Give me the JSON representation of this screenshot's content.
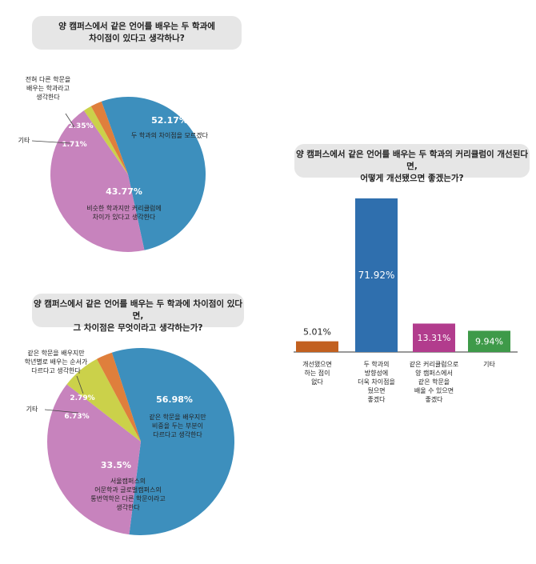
{
  "colors": {
    "blue": "#3d8fbd",
    "pink": "#c783bd",
    "orange": "#df7f3c",
    "yellow": "#cbd14a",
    "bar_blue": "#2f6fae",
    "bar_orange": "#c2601f",
    "bar_magenta": "#b23c8d",
    "bar_green": "#3e9a49"
  },
  "chart_data": [
    {
      "type": "pie",
      "title_lines": [
        "양 캠퍼스에서 같은 언어를 배우는 두 학과에",
        "차이점이 있다고 생각하나?"
      ],
      "slices": [
        {
          "value": 52.17,
          "pct": "52.17%",
          "label": [
            "두 학과의 차이점을 모르겠다"
          ],
          "color": "#3d8fbd"
        },
        {
          "value": 43.77,
          "pct": "43.77%",
          "label": [
            "비슷한 학과지만 커리큘럼에",
            "차이가 있다고 생각한다"
          ],
          "color": "#c783bd"
        },
        {
          "value": 1.71,
          "pct": "1.71%",
          "label": [
            "기타"
          ],
          "color": "#cbd14a"
        },
        {
          "value": 2.35,
          "pct": "2.35%",
          "label": [
            "전혀 다른 학문을",
            "배우는 학과라고",
            "생각한다"
          ],
          "color": "#df7f3c"
        }
      ]
    },
    {
      "type": "pie",
      "title_lines": [
        "양 캠퍼스에서 같은 언어를 배우는 두 학과에 차이점이 있다면,",
        "그 차이점은 무엇이라고 생각하는가?"
      ],
      "slices": [
        {
          "value": 56.98,
          "pct": "56.98%",
          "label": [
            "같은 학문을 배우지만",
            "비중을 두는 부분이",
            "다르다고 생각한다"
          ],
          "color": "#3d8fbd"
        },
        {
          "value": 33.5,
          "pct": "33.5%",
          "label": [
            "서울캠퍼스의",
            "어문학과 글로벌캠퍼스의",
            "통번역학은 다른 학문이라고",
            "생각한다"
          ],
          "color": "#c783bd"
        },
        {
          "value": 6.73,
          "pct": "6.73%",
          "label": [
            "기타"
          ],
          "color": "#cbd14a"
        },
        {
          "value": 2.79,
          "pct": "2.79%",
          "label": [
            "같은 학문을 배우지만",
            "학년별로 배우는 순서가",
            "다르다고 생각한다"
          ],
          "color": "#df7f3c"
        }
      ]
    },
    {
      "type": "bar",
      "title_lines": [
        "양 캠퍼스에서 같은 언어를 배우는 두 학과의 커리큘럼이 개선된다면,",
        "어떻게 개선됐으면 좋겠는가?"
      ],
      "categories": [
        [
          "개선됐으면",
          "하는 점이",
          "없다"
        ],
        [
          "두 학과의",
          "방향성에",
          "더욱 차이점을",
          "뒀으면",
          "좋겠다"
        ],
        [
          "같은 커리큘럼으로",
          "양 캠퍼스에서",
          "같은 학문을",
          "배울 수 있으면",
          "좋겠다"
        ],
        [
          "기타"
        ]
      ],
      "values": [
        5.01,
        71.92,
        13.31,
        9.94
      ],
      "value_labels": [
        "5.01%",
        "71.92%",
        "13.31%",
        "9.94%"
      ],
      "colors": [
        "#c2601f",
        "#2f6fae",
        "#b23c8d",
        "#3e9a49"
      ],
      "ylim": [
        0,
        80
      ]
    }
  ]
}
